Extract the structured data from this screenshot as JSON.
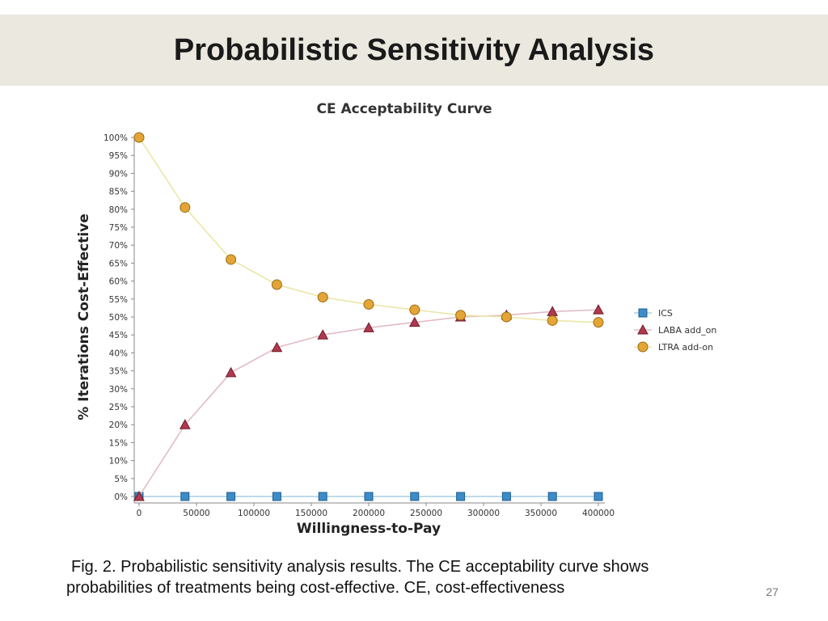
{
  "slide": {
    "title": "Probabilistic Sensitivity Analysis",
    "caption_line1": "Fig. 2. Probabilistic sensitivity analysis results. The CE acceptability curve shows",
    "caption_line2": "probabilities of treatments being cost-effective. CE, cost-effectiveness",
    "page_number": "27"
  },
  "chart_data": {
    "type": "line",
    "title": "CE Acceptability Curve",
    "xlabel": "Willingness-to-Pay",
    "ylabel": "% Iterations Cost-Effective",
    "x": [
      0,
      40000,
      80000,
      120000,
      160000,
      200000,
      240000,
      280000,
      320000,
      360000,
      400000
    ],
    "xlim": [
      0,
      400000
    ],
    "ylim": [
      0,
      100
    ],
    "x_ticks": [
      0,
      50000,
      100000,
      150000,
      200000,
      250000,
      300000,
      350000,
      400000
    ],
    "x_tick_labels": [
      "0",
      "50000",
      "100000",
      "150000",
      "200000",
      "250000",
      "300000",
      "350000",
      "400000"
    ],
    "y_ticks": [
      0,
      5,
      10,
      15,
      20,
      25,
      30,
      35,
      40,
      45,
      50,
      55,
      60,
      65,
      70,
      75,
      80,
      85,
      90,
      95,
      100
    ],
    "y_tick_labels": [
      "0%",
      "5%",
      "10%",
      "15%",
      "20%",
      "25%",
      "30%",
      "35%",
      "40%",
      "45%",
      "50%",
      "55%",
      "60%",
      "65%",
      "70%",
      "75%",
      "80%",
      "85%",
      "90%",
      "95%",
      "100%"
    ],
    "grid": false,
    "legend_position": "right",
    "series": [
      {
        "name": "ICS",
        "marker": "square",
        "line_color": "#a9cfe0",
        "marker_fill": "#3d8bc7",
        "marker_stroke": "#1d5f91",
        "values": [
          0,
          0,
          0,
          0,
          0,
          0,
          0,
          0,
          0,
          0,
          0
        ]
      },
      {
        "name": "LABA add_on",
        "marker": "triangle",
        "line_color": "#e2bcc4",
        "marker_fill": "#b0394e",
        "marker_stroke": "#6e1a2a",
        "values": [
          0,
          20,
          34.5,
          41.5,
          45,
          47,
          48.5,
          50,
          50.5,
          51.5,
          52
        ]
      },
      {
        "name": "LTRA add-on",
        "marker": "circle",
        "line_color": "#ece6a8",
        "marker_fill": "#e3a536",
        "marker_stroke": "#9a6b14",
        "values": [
          100,
          80.5,
          66,
          59,
          55.5,
          53.5,
          52,
          50.5,
          50,
          49,
          48.5
        ]
      }
    ]
  }
}
